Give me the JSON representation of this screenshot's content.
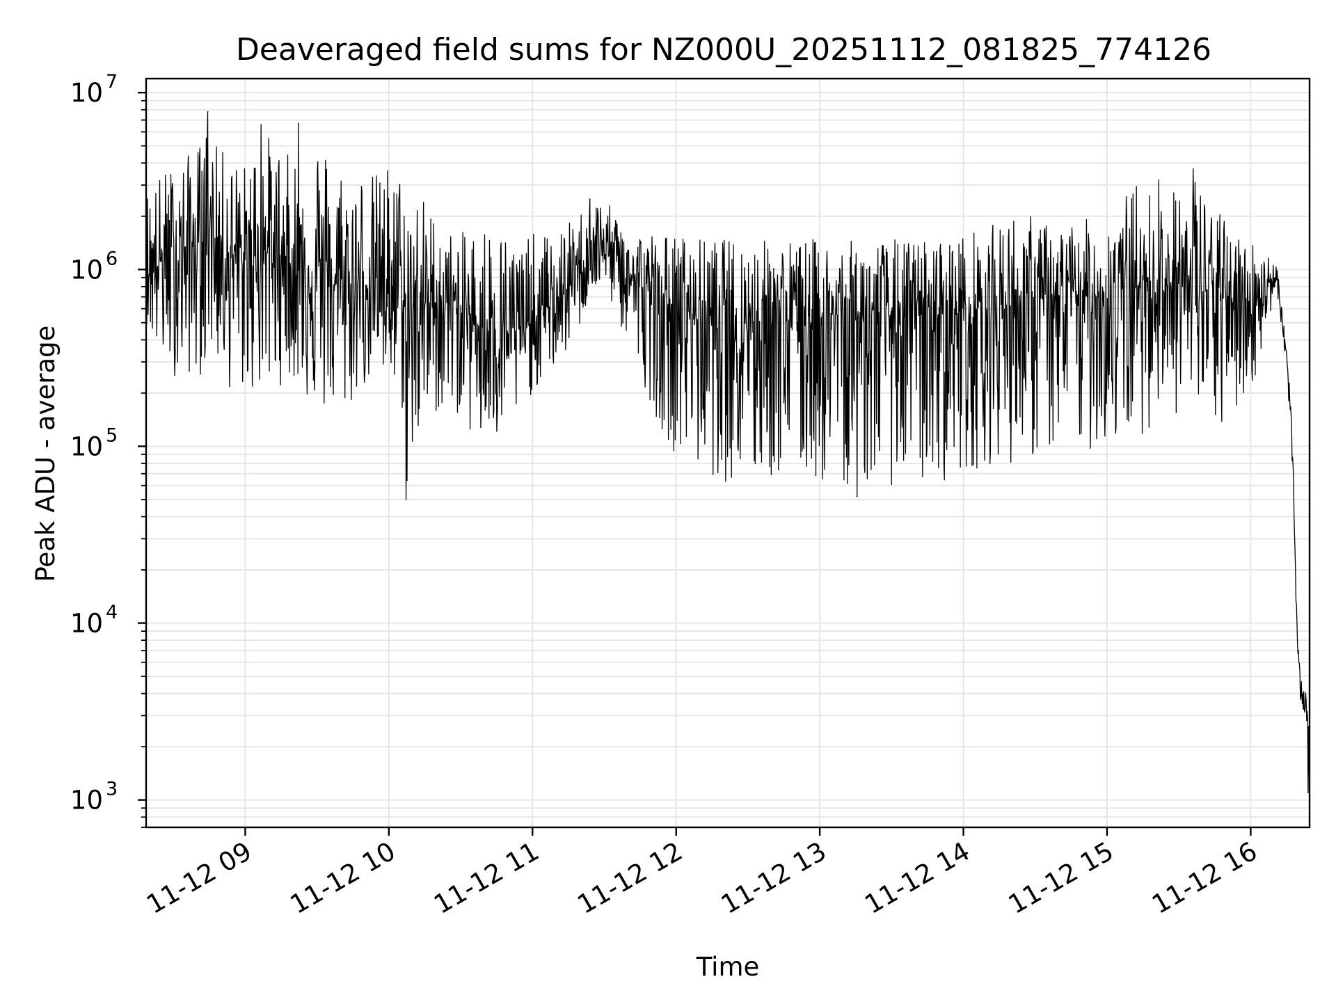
{
  "chart_data": {
    "type": "line",
    "title": "Deaveraged field sums for NZ000U_20251112_081825_774126",
    "xlabel": "Time",
    "ylabel": "Peak ADU - average",
    "yscale": "log",
    "ylim": [
      700,
      12000000
    ],
    "xlim_hours": [
      8.31,
      16.41
    ],
    "grid": true,
    "line_color": "#000000",
    "grid_color": "#e6e6e6",
    "x_ticks": [
      {
        "hour": 9,
        "label": "11-12 09"
      },
      {
        "hour": 10,
        "label": "11-12 10"
      },
      {
        "hour": 11,
        "label": "11-12 11"
      },
      {
        "hour": 12,
        "label": "11-12 12"
      },
      {
        "hour": 13,
        "label": "11-12 13"
      },
      {
        "hour": 14,
        "label": "11-12 14"
      },
      {
        "hour": 15,
        "label": "11-12 15"
      },
      {
        "hour": 16,
        "label": "11-12 16"
      }
    ],
    "y_ticks": [
      {
        "value": 1000,
        "base": "10",
        "exp": "3"
      },
      {
        "value": 10000,
        "base": "10",
        "exp": "4"
      },
      {
        "value": 100000,
        "base": "10",
        "exp": "5"
      },
      {
        "value": 1000000,
        "base": "10",
        "exp": "6"
      },
      {
        "value": 10000000,
        "base": "10",
        "exp": "7"
      }
    ],
    "series": [
      {
        "name": "Peak ADU - average",
        "x_hours": [
          8.31,
          8.4,
          8.5,
          8.6,
          8.7,
          8.75,
          8.8,
          8.9,
          9.0,
          9.1,
          9.2,
          9.3,
          9.4,
          9.5,
          9.6,
          9.7,
          9.8,
          9.9,
          10.0,
          10.1,
          10.12,
          10.2,
          10.3,
          10.4,
          10.5,
          10.6,
          10.7,
          10.8,
          10.9,
          11.0,
          11.1,
          11.2,
          11.3,
          11.4,
          11.5,
          11.6,
          11.7,
          11.8,
          11.9,
          12.0,
          12.2,
          12.4,
          12.6,
          12.8,
          13.0,
          13.2,
          13.4,
          13.6,
          13.8,
          14.0,
          14.2,
          14.4,
          14.6,
          14.8,
          15.0,
          15.2,
          15.4,
          15.6,
          15.8,
          16.0,
          16.1,
          16.15,
          16.18,
          16.2,
          16.22,
          16.25,
          16.28,
          16.3,
          16.32,
          16.34,
          16.36,
          16.38,
          16.4,
          16.41
        ],
        "center": [
          1000000,
          1100000,
          1200000,
          1300000,
          1500000,
          1600000,
          1400000,
          1200000,
          1100000,
          1200000,
          1300000,
          1100000,
          1000000,
          950000,
          850000,
          750000,
          800000,
          900000,
          850000,
          700000,
          600000,
          600000,
          650000,
          650000,
          600000,
          500000,
          450000,
          450000,
          450000,
          500000,
          600000,
          700000,
          900000,
          1300000,
          1400000,
          1100000,
          900000,
          750000,
          650000,
          600000,
          550000,
          550000,
          550000,
          550000,
          550000,
          550000,
          550000,
          550000,
          550000,
          580000,
          600000,
          650000,
          680000,
          700000,
          720000,
          800000,
          850000,
          800000,
          700000,
          650000,
          800000,
          900000,
          900000,
          700000,
          500000,
          300000,
          150000,
          50000,
          10000,
          5000,
          3500,
          3500,
          3000,
          1200
        ],
        "low": [
          500000,
          300000,
          250000,
          250000,
          250000,
          350000,
          300000,
          200000,
          200000,
          200000,
          200000,
          250000,
          200000,
          150000,
          150000,
          150000,
          200000,
          250000,
          200000,
          150000,
          50000,
          100000,
          150000,
          150000,
          150000,
          100000,
          100000,
          100000,
          150000,
          200000,
          250000,
          300000,
          400000,
          700000,
          800000,
          500000,
          300000,
          200000,
          120000,
          90000,
          70000,
          60000,
          60000,
          70000,
          60000,
          60000,
          60000,
          60000,
          60000,
          70000,
          80000,
          80000,
          90000,
          90000,
          100000,
          110000,
          150000,
          150000,
          120000,
          200000,
          400000,
          600000,
          700000,
          500000,
          300000,
          200000,
          100000,
          30000,
          6000,
          3000,
          2500,
          2800,
          1500,
          1100
        ],
        "high": [
          3000000,
          3500000,
          4000000,
          4500000,
          5500000,
          8000000,
          5000000,
          4500000,
          4000000,
          6500000,
          5500000,
          4500000,
          5000000,
          6500000,
          4500000,
          4000000,
          4000000,
          3500000,
          4200000,
          3500000,
          3000000,
          3000000,
          2200000,
          1700000,
          1600000,
          1800000,
          2000000,
          1700000,
          1500000,
          1600000,
          1600000,
          1700000,
          2000000,
          2500000,
          2500000,
          2000000,
          1700000,
          1700000,
          1600000,
          1600000,
          1500000,
          1500000,
          1500000,
          1500000,
          1500000,
          1450000,
          1500000,
          1500000,
          1500000,
          1600000,
          1800000,
          2200000,
          1800000,
          1900000,
          2000000,
          3200000,
          2500000,
          3700000,
          2000000,
          1500000,
          1300000,
          1200000,
          1100000,
          900000,
          600000,
          400000,
          200000,
          100000,
          12000,
          6000,
          5000,
          4500,
          4000,
          3000
        ],
        "spikes": [
          {
            "x_hours": 8.74,
            "value": 7800000
          },
          {
            "x_hours": 9.11,
            "value": 6600000
          },
          {
            "x_hours": 9.37,
            "value": 6700000
          },
          {
            "x_hours": 10.12,
            "value": 50000
          },
          {
            "x_hours": 11.4,
            "value": 2500000
          },
          {
            "x_hours": 13.26,
            "value": 52000
          },
          {
            "x_hours": 15.36,
            "value": 3200000
          },
          {
            "x_hours": 15.6,
            "value": 3700000
          },
          {
            "x_hours": 16.4,
            "value": 1100
          }
        ]
      }
    ]
  }
}
